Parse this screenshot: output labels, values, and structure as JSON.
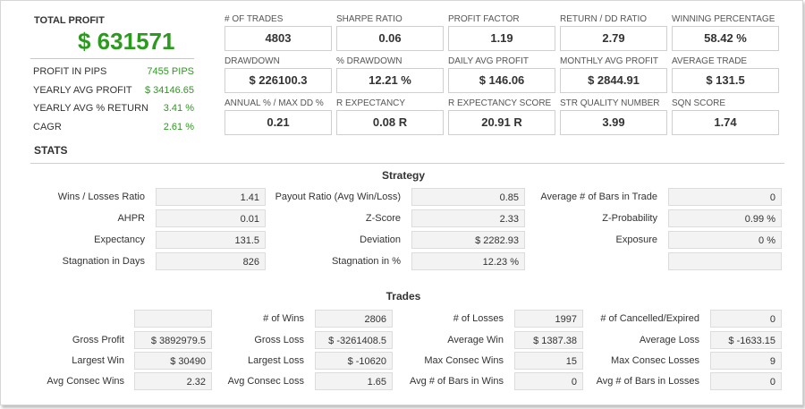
{
  "summary": {
    "total_profit_label": "TOTAL PROFIT",
    "total_profit_value": "$ 631571",
    "rows": [
      {
        "label": "PROFIT IN PIPS",
        "value": "7455 PIPS"
      },
      {
        "label": "YEARLY AVG PROFIT",
        "value": "$ 34146.65"
      },
      {
        "label": "YEARLY AVG % RETURN",
        "value": "3.41 %"
      },
      {
        "label": "CAGR",
        "value": "2.61 %"
      }
    ]
  },
  "metrics": [
    {
      "label": "# OF TRADES",
      "value": "4803"
    },
    {
      "label": "SHARPE RATIO",
      "value": "0.06"
    },
    {
      "label": "PROFIT FACTOR",
      "value": "1.19"
    },
    {
      "label": "RETURN / DD RATIO",
      "value": "2.79"
    },
    {
      "label": "WINNING PERCENTAGE",
      "value": "58.42 %"
    },
    {
      "label": "DRAWDOWN",
      "value": "$ 226100.3"
    },
    {
      "label": "% DRAWDOWN",
      "value": "12.21 %"
    },
    {
      "label": "DAILY AVG PROFIT",
      "value": "$ 146.06"
    },
    {
      "label": "MONTHLY AVG PROFIT",
      "value": "$ 2844.91"
    },
    {
      "label": "AVERAGE TRADE",
      "value": "$ 131.5"
    },
    {
      "label": "ANNUAL % / MAX DD %",
      "value": "0.21"
    },
    {
      "label": "R EXPECTANCY",
      "value": "0.08 R"
    },
    {
      "label": "R EXPECTANCY SCORE",
      "value": "20.91 R"
    },
    {
      "label": "STR QUALITY NUMBER",
      "value": "3.99"
    },
    {
      "label": "SQN SCORE",
      "value": "1.74"
    }
  ],
  "stats": {
    "title": "STATS",
    "strategy": {
      "title": "Strategy",
      "rows": [
        [
          {
            "label": "Wins / Losses Ratio",
            "value": "1.41"
          },
          {
            "label": "Payout Ratio (Avg Win/Loss)",
            "value": "0.85"
          },
          {
            "label": "Average # of Bars in Trade",
            "value": "0"
          }
        ],
        [
          {
            "label": "AHPR",
            "value": "0.01"
          },
          {
            "label": "Z-Score",
            "value": "2.33"
          },
          {
            "label": "Z-Probability",
            "value": "0.99 %"
          }
        ],
        [
          {
            "label": "Expectancy",
            "value": "131.5"
          },
          {
            "label": "Deviation",
            "value": "$ 2282.93"
          },
          {
            "label": "Exposure",
            "value": "0 %"
          }
        ],
        [
          {
            "label": "Stagnation in Days",
            "value": "826"
          },
          {
            "label": "Stagnation in %",
            "value": "12.23 %"
          },
          {
            "label": "",
            "value": ""
          }
        ]
      ]
    },
    "trades": {
      "title": "Trades",
      "rows": [
        [
          {
            "label": "",
            "value": ""
          },
          {
            "label": "# of Wins",
            "value": "2806"
          },
          {
            "label": "# of Losses",
            "value": "1997"
          },
          {
            "label": "# of Cancelled/Expired",
            "value": "0"
          }
        ],
        [
          {
            "label": "Gross Profit",
            "value": "$ 3892979.5"
          },
          {
            "label": "Gross Loss",
            "value": "$ -3261408.5"
          },
          {
            "label": "Average Win",
            "value": "$ 1387.38"
          },
          {
            "label": "Average Loss",
            "value": "$ -1633.15"
          }
        ],
        [
          {
            "label": "Largest Win",
            "value": "$ 30490"
          },
          {
            "label": "Largest Loss",
            "value": "$ -10620"
          },
          {
            "label": "Max Consec Wins",
            "value": "15"
          },
          {
            "label": "Max Consec Losses",
            "value": "9"
          }
        ],
        [
          {
            "label": "Avg Consec Wins",
            "value": "2.32"
          },
          {
            "label": "Avg Consec Loss",
            "value": "1.65"
          },
          {
            "label": "Avg # of Bars in Wins",
            "value": "0"
          },
          {
            "label": "Avg # of Bars in Losses",
            "value": "0"
          }
        ]
      ]
    }
  },
  "colors": {
    "profit_green": "#2c9a1f",
    "text": "#333333",
    "value_cell_bg": "#f3f3f3"
  }
}
